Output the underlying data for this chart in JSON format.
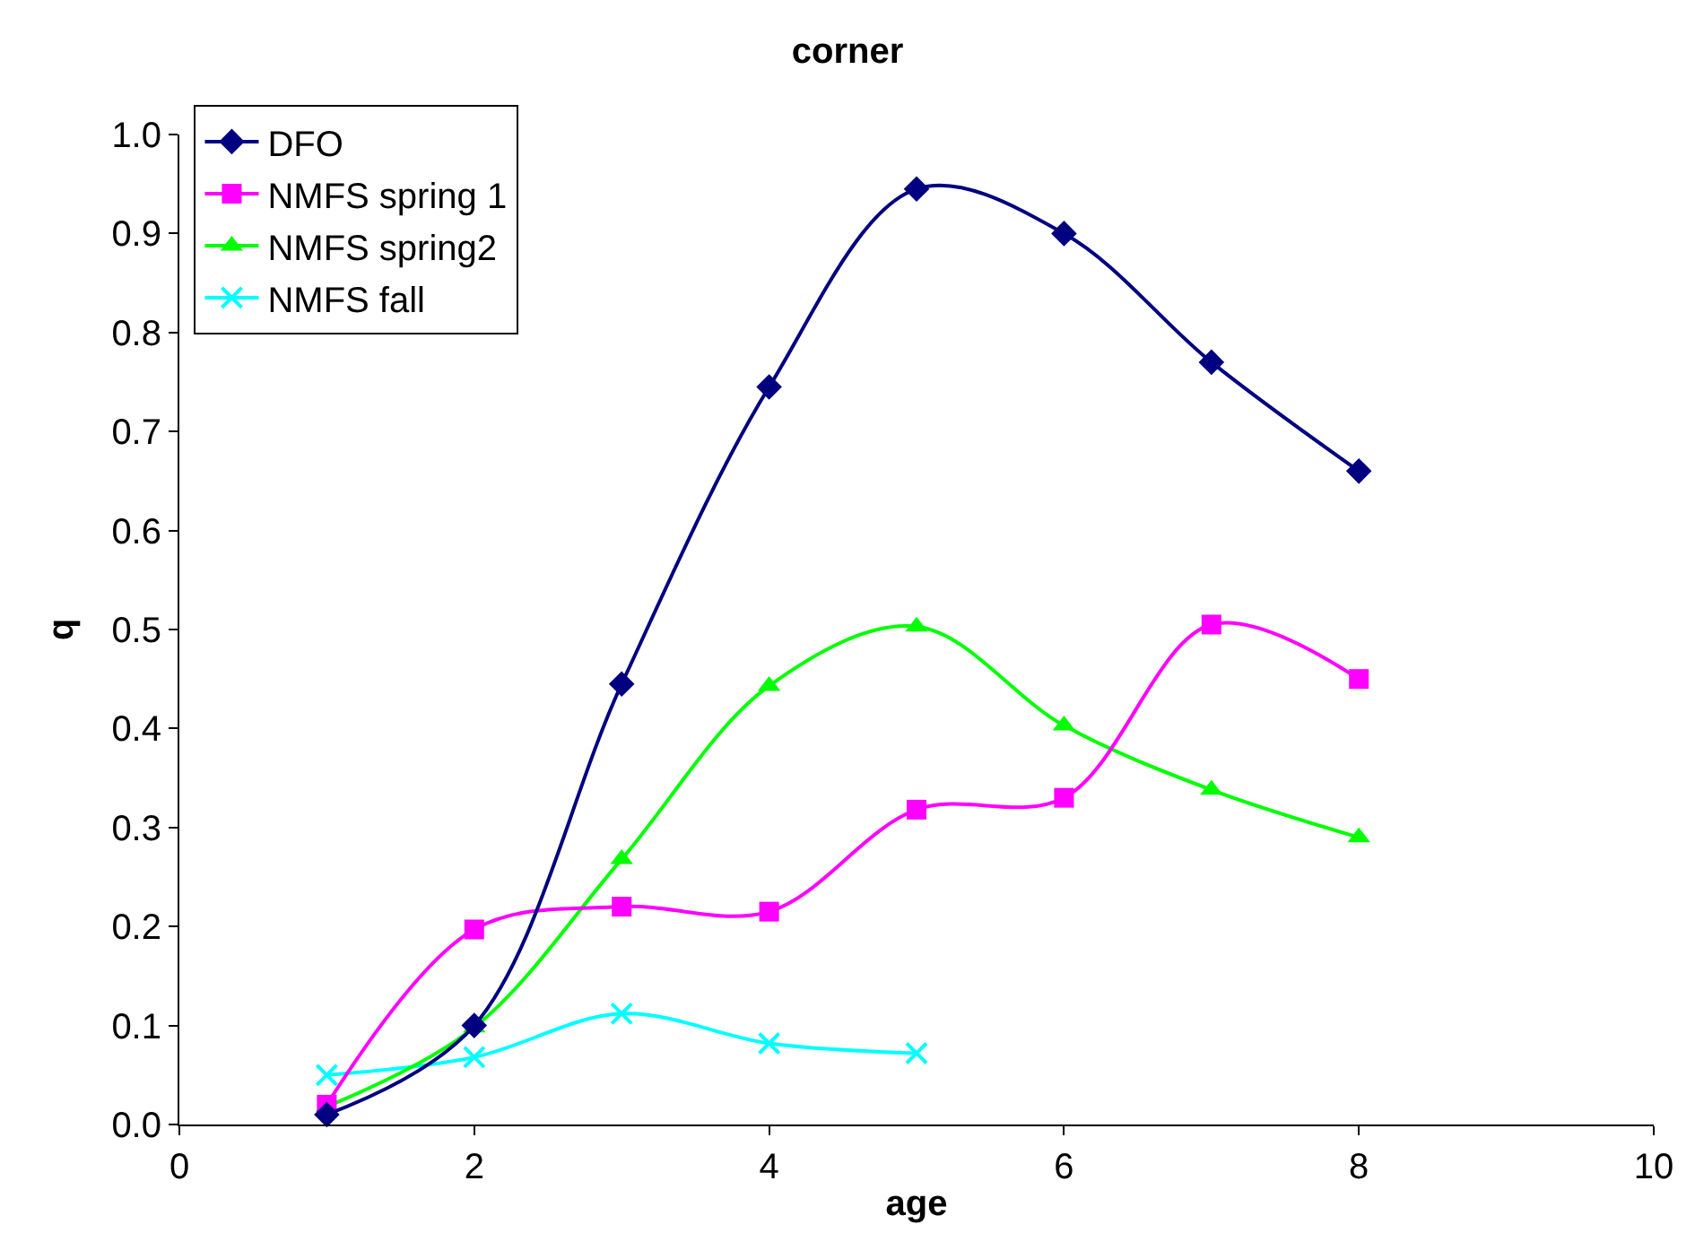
{
  "chart_data": {
    "type": "line",
    "title": "corner",
    "xlabel": "age",
    "ylabel": "q",
    "xlim": [
      0,
      10
    ],
    "xticks": [
      0,
      2,
      4,
      6,
      8,
      10
    ],
    "ylim": [
      0,
      1
    ],
    "yticks": [
      {
        "value": 0,
        "label": "0.0"
      },
      0.1,
      0.2,
      0.3,
      0.4,
      0.5,
      0.6,
      0.7,
      0.8,
      0.9,
      {
        "value": 1,
        "label": "1.0"
      }
    ],
    "grid": false,
    "legend": "top left",
    "series": [
      {
        "name": "DFO",
        "color": "#000080",
        "marker": "diamond",
        "x": [
          1,
          2,
          3,
          4,
          5,
          6,
          7,
          8
        ],
        "values": [
          0.01,
          0.1,
          0.445,
          0.745,
          0.945,
          0.9,
          0.77,
          0.66
        ]
      },
      {
        "name": "NMFS spring 1",
        "color": "#ff00ff",
        "marker": "square",
        "x": [
          1,
          2,
          3,
          4,
          5,
          6,
          7,
          8
        ],
        "values": [
          0.02,
          0.197,
          0.22,
          0.215,
          0.318,
          0.33,
          0.505,
          0.45
        ]
      },
      {
        "name": "NMFS spring2",
        "color": "#00ff00",
        "marker": "triangle",
        "x": [
          1,
          2,
          3,
          4,
          5,
          6,
          7,
          8
        ],
        "values": [
          0.018,
          0.098,
          0.268,
          0.443,
          0.503,
          0.403,
          0.338,
          0.29
        ]
      },
      {
        "name": "NMFS fall",
        "color": "#00ffff",
        "marker": "cross",
        "x": [
          1,
          2,
          3,
          4,
          5
        ],
        "values": [
          0.05,
          0.068,
          0.112,
          0.082,
          0.072
        ]
      }
    ]
  }
}
